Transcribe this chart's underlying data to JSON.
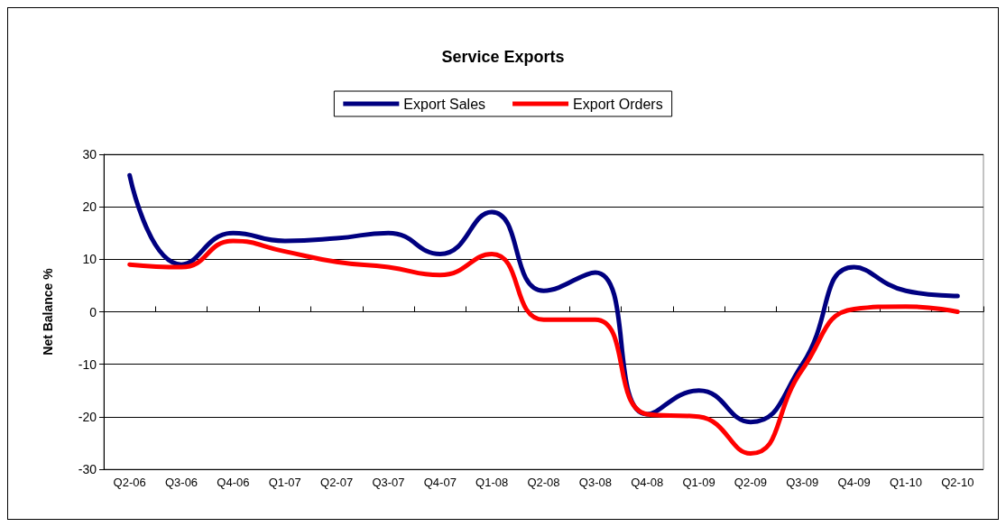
{
  "chart_data": {
    "type": "line",
    "title": "Service Exports",
    "ylabel": "Net Balance %",
    "categories": [
      "Q2-06",
      "Q3-06",
      "Q4-06",
      "Q1-07",
      "Q2-07",
      "Q3-07",
      "Q4-07",
      "Q1-08",
      "Q2-08",
      "Q3-08",
      "Q4-08",
      "Q1-09",
      "Q2-09",
      "Q3-09",
      "Q4-09",
      "Q1-10",
      "Q2-10"
    ],
    "series": [
      {
        "name": "Export Sales",
        "color": "#000080",
        "values": [
          26,
          9,
          15,
          13.5,
          14,
          15,
          11,
          19,
          4,
          7.5,
          -19.5,
          -15,
          -21,
          -10,
          8.5,
          4,
          3
        ]
      },
      {
        "name": "Export Orders",
        "color": "#ff0000",
        "values": [
          9,
          8.5,
          13.5,
          11.5,
          9.5,
          8.5,
          7,
          11,
          -1.5,
          -1.5,
          -19.5,
          -20,
          -27,
          -11,
          0.5,
          1,
          0
        ]
      }
    ],
    "ylim": [
      -30,
      30
    ],
    "yticks": [
      -30,
      -20,
      -10,
      0,
      10,
      20,
      30
    ],
    "grid": "y",
    "legend": "top",
    "marker": "none",
    "line_style": "solid"
  }
}
